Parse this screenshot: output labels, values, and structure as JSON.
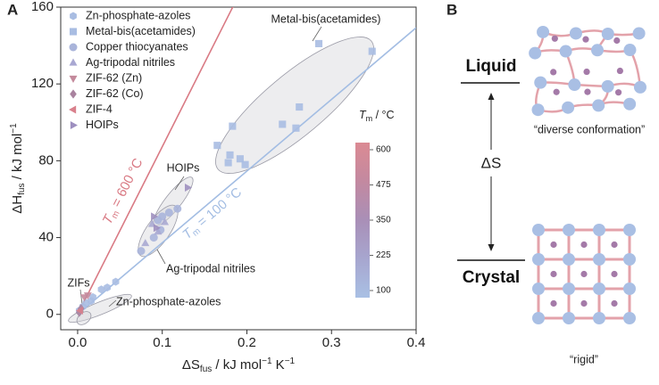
{
  "chart_data": {
    "type": "scatter",
    "panel_label": "A",
    "xlabel": {
      "main": "ΔS",
      "sub": "fus",
      "rest": " / kJ mol",
      "sup1": "−1",
      "rest2": " K",
      "sup2": "−1"
    },
    "ylabel": {
      "main": "ΔH",
      "sub": "fus",
      "rest": " / kJ mol",
      "sup": "−1"
    },
    "xlim": [
      -0.02,
      0.4
    ],
    "xticks": [
      {
        "value": 0,
        "label": "0.0"
      },
      0.1,
      0.2,
      0.3,
      0.4
    ],
    "ylim": [
      -8,
      160
    ],
    "yticks": [
      0,
      40,
      80,
      120,
      160
    ],
    "series": [
      {
        "name": "Zn-phosphate-azoles",
        "color": "#a9bde2",
        "marker": "hexagon",
        "x": [
          0.002,
          0.006,
          0.01,
          0.016,
          0.018,
          0.028,
          0.035,
          0.045
        ],
        "values": [
          2,
          4,
          6,
          7,
          9,
          13,
          14,
          17
        ]
      },
      {
        "name": "Metal-bis(acetamides)",
        "color": "#a9bde2",
        "marker": "square",
        "x": [
          0.285,
          0.348,
          0.183,
          0.242,
          0.262,
          0.258,
          0.165,
          0.18,
          0.192,
          0.198,
          0.178
        ],
        "values": [
          141,
          137,
          98,
          99,
          108,
          97,
          88,
          83,
          81,
          78,
          79
        ]
      },
      {
        "name": "Copper thiocyanates",
        "color": "#a9b4da",
        "marker": "circle",
        "x": [
          0.075,
          0.09,
          0.098,
          0.1,
          0.108,
          0.118,
          0.095
        ],
        "values": [
          33,
          40,
          44,
          51,
          53,
          55,
          49
        ]
      },
      {
        "name": "Ag-tripodal nitriles",
        "color": "#a9a8d2",
        "marker": "triangle-up",
        "x": [
          0.088,
          0.103,
          0.08,
          0.095
        ],
        "values": [
          47,
          48,
          37,
          43
        ]
      },
      {
        "name": "ZIF-62 (Zn)",
        "color": "#c48a9c",
        "marker": "triangle-down",
        "x": [
          0.008,
          0.012
        ],
        "values": [
          9,
          10
        ]
      },
      {
        "name": "ZIF-62 (Co)",
        "color": "#a9839f",
        "marker": "diamond",
        "x": [
          0.002,
          0.004
        ],
        "values": [
          1,
          3
        ]
      },
      {
        "name": "ZIF-4",
        "color": "#d9808c",
        "marker": "triangle-left",
        "x": [
          0.003
        ],
        "values": [
          2
        ]
      },
      {
        "name": "HOIPs",
        "color": "#9d8fbf",
        "marker": "triangle-right",
        "x": [
          0.09,
          0.13,
          0.093
        ],
        "values": [
          51,
          66,
          45
        ]
      }
    ],
    "tm_lines": [
      {
        "value": 600,
        "color": "#d97a84",
        "label": {
          "name": "T",
          "sub": "m",
          "text": " = 600 °C"
        }
      },
      {
        "value": 100,
        "color": "#a3bde3",
        "label": {
          "name": "T",
          "sub": "m",
          "text": " = 100 °C"
        }
      }
    ],
    "colorbar": {
      "label": {
        "name": "T",
        "sub": "m",
        "text": " / °C"
      },
      "lim": [
        100,
        600
      ],
      "ticks": [
        100,
        225,
        350,
        475,
        600
      ],
      "colors": [
        "#a9c0e4",
        "#a7a6cf",
        "#a98fb7",
        "#c389a0",
        "#db8a93"
      ]
    },
    "annotations": [
      "Metal-bis(acetamides)",
      "HOIPs",
      "Ag-tripodal nitriles",
      "Zn-phosphate-azoles",
      "ZIFs"
    ]
  },
  "diagram": {
    "panel_label": "B",
    "top_state": "Liquid",
    "bottom_state": "Crystal",
    "arrow_label": "ΔS",
    "top_caption": "“diverse conformation”",
    "bottom_caption": "“rigid”"
  }
}
